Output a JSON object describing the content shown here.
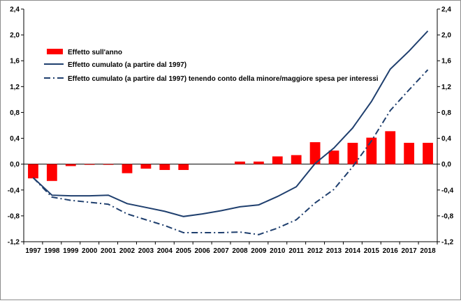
{
  "chart_data": {
    "type": "bar",
    "categories": [
      "1997",
      "1998",
      "1999",
      "2000",
      "2001",
      "2002",
      "2003",
      "2004",
      "2005",
      "2006",
      "2007",
      "2008",
      "2009",
      "2010",
      "2011",
      "2012",
      "2013",
      "2014",
      "2015",
      "2016",
      "2017",
      "2018"
    ],
    "series": [
      {
        "name": "Effetto sull'anno",
        "type": "bar",
        "color": "#ff0000",
        "values": [
          -0.22,
          -0.26,
          -0.03,
          -0.01,
          -0.01,
          -0.14,
          -0.07,
          -0.09,
          -0.09,
          0.0,
          0.0,
          0.04,
          0.04,
          0.12,
          0.14,
          0.34,
          0.21,
          0.33,
          0.41,
          0.51,
          0.33,
          0.33
        ]
      },
      {
        "name": "Effetto cumulato (a partire dal 1997)",
        "type": "line",
        "style": "solid",
        "color": "#1f3f6e",
        "values": [
          -0.21,
          -0.48,
          -0.49,
          -0.49,
          -0.48,
          -0.61,
          -0.67,
          -0.73,
          -0.81,
          -0.77,
          -0.72,
          -0.66,
          -0.63,
          -0.5,
          -0.35,
          0.01,
          0.25,
          0.56,
          0.97,
          1.47,
          1.75,
          2.06
        ]
      },
      {
        "name": "Effetto cumulato (a partire dal 1997) tenendo conto della minore/maggiore spesa per interessi",
        "type": "line",
        "style": "dash-dot",
        "color": "#1f3f6e",
        "values": [
          -0.21,
          -0.51,
          -0.56,
          -0.59,
          -0.62,
          -0.77,
          -0.86,
          -0.95,
          -1.06,
          -1.06,
          -1.06,
          -1.05,
          -1.09,
          -0.99,
          -0.86,
          -0.6,
          -0.39,
          -0.04,
          0.36,
          0.83,
          1.15,
          1.46
        ]
      }
    ],
    "ylim": [
      -1.2,
      2.4
    ],
    "yticks": [
      "2,4",
      "2,0",
      "1,6",
      "1,2",
      "0,8",
      "0,4",
      "0,0",
      "-0,4",
      "-0,8",
      "-1,2"
    ],
    "ytick_values": [
      2.4,
      2.0,
      1.6,
      1.2,
      0.8,
      0.4,
      0.0,
      -0.4,
      -0.8,
      -1.2
    ],
    "y_axes": "both sides",
    "grid": false,
    "legend_position": "upper-left",
    "title": "",
    "xlabel": "",
    "ylabel": ""
  }
}
